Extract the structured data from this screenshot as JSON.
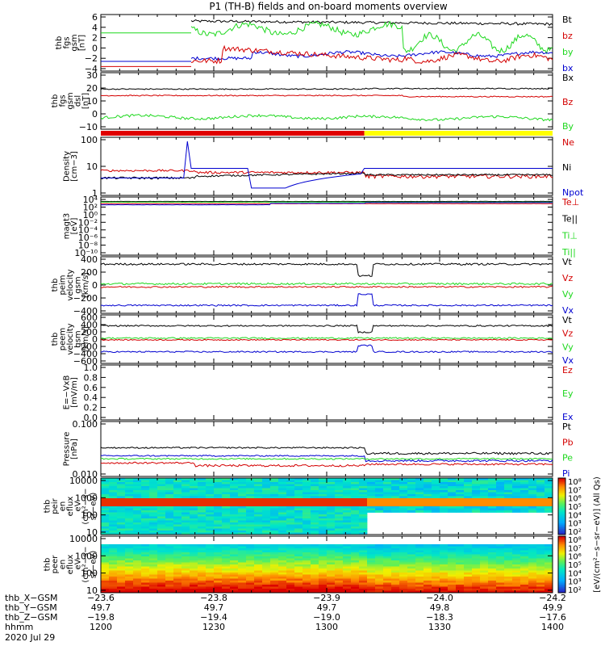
{
  "title": "P1 (TH-B) fields and on-board moments overview",
  "colors": {
    "black": "#000000",
    "red": "#d40000",
    "green": "#1ed81e",
    "blue": "#0000d0",
    "bar_red": "#e00000",
    "bar_yellow": "#ffff00"
  },
  "chart_data": [
    {
      "type": "line",
      "id": "fgs_gsm",
      "ylabel": [
        "thb",
        "fgs",
        "gsm",
        "[nT]"
      ],
      "yticks": [
        "6",
        "4",
        "2",
        "0",
        "−2",
        "−4"
      ],
      "ylim": [
        -4,
        6
      ],
      "series": [
        {
          "name": "Bt",
          "color": "#000000"
        },
        {
          "name": "bz",
          "color": "#d40000"
        },
        {
          "name": "by",
          "color": "#1ed81e"
        },
        {
          "name": "bx",
          "color": "#0000d0"
        }
      ]
    },
    {
      "type": "line",
      "id": "fgs_gsm_dsl",
      "ylabel": [
        "thb",
        "fgs",
        "gsm",
        "dsl",
        "[nT]"
      ],
      "yticks": [
        "30",
        "20",
        "10",
        "0",
        "−10"
      ],
      "ylim": [
        -15,
        30
      ],
      "series": [
        {
          "name": "Bx",
          "color": "#000000"
        },
        {
          "name": "Bz",
          "color": "#d40000"
        },
        {
          "name": "By",
          "color": "#1ed81e"
        }
      ]
    },
    {
      "type": "bar",
      "id": "mode_bar",
      "segments": [
        {
          "from": "12:00",
          "to": "13:10",
          "color": "#e00000"
        },
        {
          "from": "13:10",
          "to": "14:00",
          "color": "#ffff00"
        }
      ]
    },
    {
      "type": "line",
      "id": "density",
      "ylabel": [
        "Density",
        "[cm−3]"
      ],
      "yticks": [
        "100",
        "10",
        "1"
      ],
      "ylim": [
        1,
        300
      ],
      "log": true,
      "series": [
        {
          "name": "Ne",
          "color": "#d40000"
        },
        {
          "name": "Ni",
          "color": "#000000"
        },
        {
          "name": "Npot",
          "color": "#0000d0"
        }
      ]
    },
    {
      "type": "line",
      "id": "temperature",
      "ylabel": [
        "magt3",
        "[eV]"
      ],
      "yticks": [
        "10⁴",
        "10²",
        "10⁰",
        "10⁻²",
        "10⁻⁴",
        "10⁻⁶",
        "10⁻⁸",
        "10⁻¹⁰"
      ],
      "log": true,
      "series": [
        {
          "name": "Te⊥",
          "color": "#d40000"
        },
        {
          "name": "Te||",
          "color": "#000000"
        },
        {
          "name": "Ti⊥",
          "color": "#1ed81e"
        },
        {
          "name": "Ti||",
          "color": "#1ed81e"
        }
      ]
    },
    {
      "type": "line",
      "id": "peim_velocity",
      "ylabel": [
        "thb",
        "peim",
        "velocity",
        "gsm",
        "[km/s]"
      ],
      "yticks": [
        "400",
        "200",
        "0",
        "−200",
        "−400"
      ],
      "ylim": [
        -400,
        400
      ],
      "series": [
        {
          "name": "Vt",
          "color": "#000000"
        },
        {
          "name": "Vz",
          "color": "#d40000"
        },
        {
          "name": "Vy",
          "color": "#1ed81e"
        },
        {
          "name": "Vx",
          "color": "#0000d0"
        }
      ]
    },
    {
      "type": "line",
      "id": "peem_velocity",
      "ylabel": [
        "thb",
        "peem",
        "velocity",
        "gsm",
        "[km/s]"
      ],
      "yticks": [
        "600",
        "400",
        "200",
        "0",
        "−200",
        "−400",
        "−600"
      ],
      "ylim": [
        -600,
        600
      ],
      "series": [
        {
          "name": "Vt",
          "color": "#000000"
        },
        {
          "name": "Vz",
          "color": "#d40000"
        },
        {
          "name": "Vy",
          "color": "#1ed81e"
        },
        {
          "name": "Vx",
          "color": "#0000d0"
        }
      ]
    },
    {
      "type": "line",
      "id": "efield",
      "ylabel": [
        "E=−VxB",
        "[mV/m]"
      ],
      "yticks": [
        "1.0",
        "0.8",
        "0.6",
        "0.4",
        "0.2",
        "0.0"
      ],
      "ylim": [
        0,
        1
      ],
      "series": [
        {
          "name": "Ez",
          "color": "#d40000"
        },
        {
          "name": "Ey",
          "color": "#1ed81e"
        },
        {
          "name": "Ex",
          "color": "#0000d0"
        }
      ]
    },
    {
      "type": "line",
      "id": "pressure",
      "ylabel": [
        "Pressure",
        "[nPa]"
      ],
      "yticks": [
        "0.100",
        "0.010"
      ],
      "log": true,
      "series": [
        {
          "name": "Pt",
          "color": "#000000"
        },
        {
          "name": "Pb",
          "color": "#d40000"
        },
        {
          "name": "Pe",
          "color": "#1ed81e"
        },
        {
          "name": "Pi",
          "color": "#0000d0"
        }
      ]
    },
    {
      "type": "heatmap",
      "id": "peir_spec",
      "ylabel": [
        "thb",
        "peir",
        "en",
        "eflux",
        "eV",
        "(cm²−s−",
        "sr−eV)"
      ],
      "yticks": [
        "10000",
        "1000",
        "100",
        "10"
      ]
    },
    {
      "type": "heatmap",
      "id": "peer_spec",
      "ylabel": [
        "thb",
        "peer",
        "en",
        "eflux",
        "eV",
        "(cm²−s−",
        "sr−eV)"
      ],
      "yticks": [
        "10000",
        "1000",
        "100",
        "10"
      ]
    }
  ],
  "colorbar": {
    "ticks": [
      "10⁸",
      "10⁷",
      "10⁶",
      "10⁵",
      "10⁴",
      "10³",
      "10²"
    ],
    "label": "[eV/(cm²−s−sr−eV)] (All Qs)",
    "ticks2": [
      "10⁸",
      "10⁷",
      "10⁶",
      "10⁵",
      "10⁴",
      "10³",
      "10²"
    ]
  },
  "x_axis": {
    "ticks": [
      {
        "x_gsm": "−23.6",
        "y_gsm": "49.7",
        "z_gsm": "−19.8",
        "hhmm": "1200"
      },
      {
        "x_gsm": "−23.8",
        "y_gsm": "49.7",
        "z_gsm": "−19.4",
        "hhmm": "1230"
      },
      {
        "x_gsm": "−23.9",
        "y_gsm": "49.7",
        "z_gsm": "−19.0",
        "hhmm": "1300"
      },
      {
        "x_gsm": "−24.0",
        "y_gsm": "49.8",
        "z_gsm": "−18.3",
        "hhmm": "1330"
      },
      {
        "x_gsm": "−24.2",
        "y_gsm": "49.9",
        "z_gsm": "−17.6",
        "hhmm": "1400"
      }
    ],
    "row_labels": [
      "thb_X−GSM",
      "thb_Y−GSM",
      "thb_Z−GSM",
      "hhmm"
    ],
    "date": "2020 Jul 29"
  }
}
